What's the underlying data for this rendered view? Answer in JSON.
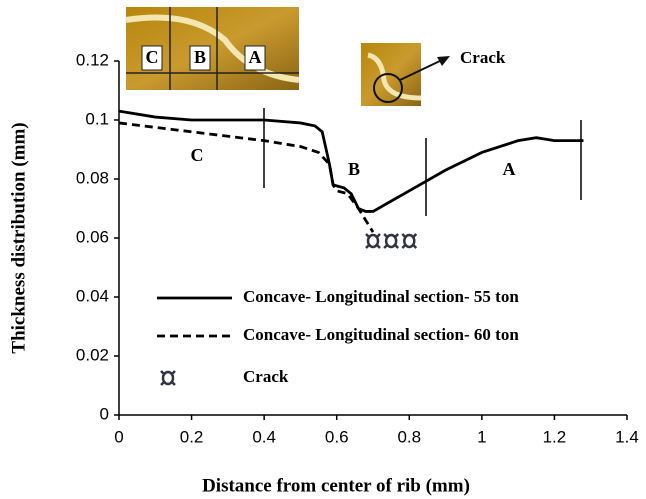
{
  "chart_data": {
    "type": "line",
    "xlabel": "Distance from center of rib (mm)",
    "ylabel": "Thickness distribution (mm)",
    "xlim": [
      0,
      1.4
    ],
    "ylim": [
      0,
      0.12
    ],
    "xticks": [
      0,
      0.2,
      0.4,
      0.6,
      0.8,
      1,
      1.2,
      1.4
    ],
    "yticks": [
      0,
      0.02,
      0.04,
      0.06,
      0.08,
      0.1,
      0.12
    ],
    "series": [
      {
        "name": "Concave- Longitudinal section- 55 ton",
        "color": "#000000",
        "style": "solid",
        "x": [
          0,
          0.1,
          0.2,
          0.3,
          0.4,
          0.5,
          0.54,
          0.56,
          0.58,
          0.59,
          0.62,
          0.64,
          0.66,
          0.68,
          0.7,
          0.8,
          0.9,
          1.0,
          1.1,
          1.15,
          1.2,
          1.28
        ],
        "values": [
          0.103,
          0.101,
          0.1,
          0.1,
          0.1,
          0.099,
          0.098,
          0.096,
          0.085,
          0.078,
          0.077,
          0.075,
          0.07,
          0.069,
          0.069,
          0.076,
          0.083,
          0.089,
          0.093,
          0.094,
          0.093,
          0.093
        ]
      },
      {
        "name": "Concave- Longitudinal section- 60 ton",
        "color": "#000000",
        "style": "dashed",
        "x": [
          0,
          0.2,
          0.4,
          0.5,
          0.55,
          0.58,
          0.59,
          0.6,
          0.63,
          0.66,
          0.68,
          0.7
        ],
        "values": [
          0.099,
          0.096,
          0.093,
          0.091,
          0.089,
          0.085,
          0.078,
          0.076,
          0.075,
          0.07,
          0.066,
          0.062
        ]
      },
      {
        "name": "Crack",
        "color": "#333344",
        "style": "marker",
        "x": [
          0.7,
          0.75,
          0.8
        ],
        "values": [
          0.059,
          0.059,
          0.059
        ]
      }
    ],
    "region_labels": [
      "C",
      "B",
      "A"
    ],
    "inset_labels": [
      "C",
      "B",
      "A"
    ],
    "inset_crack_label": "Crack"
  }
}
